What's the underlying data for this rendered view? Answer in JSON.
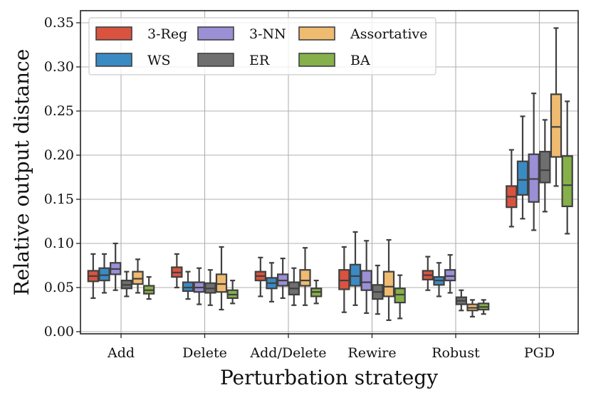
{
  "chart_data": {
    "type": "box",
    "title": "",
    "xlabel": "Perturbation strategy",
    "ylabel": "Relative output distance",
    "ylim": [
      0.0,
      0.36
    ],
    "yticks": [
      "0.00",
      "0.05",
      "0.10",
      "0.15",
      "0.20",
      "0.25",
      "0.30",
      "0.35"
    ],
    "ytick_values": [
      0.0,
      0.05,
      0.1,
      0.15,
      0.2,
      0.25,
      0.3,
      0.35
    ],
    "grid": true,
    "legend_position": "top-left",
    "categories": [
      "Add",
      "Delete",
      "Add/Delete",
      "Rewire",
      "Robust",
      "PGD"
    ],
    "series": [
      {
        "name": "3-Reg",
        "color": "#d9533f",
        "boxes": [
          {
            "whislo": 0.038,
            "q1": 0.057,
            "med": 0.063,
            "q3": 0.069,
            "whishi": 0.088
          },
          {
            "whislo": 0.05,
            "q1": 0.062,
            "med": 0.067,
            "q3": 0.073,
            "whishi": 0.088
          },
          {
            "whislo": 0.04,
            "q1": 0.058,
            "med": 0.063,
            "q3": 0.068,
            "whishi": 0.084
          },
          {
            "whislo": 0.022,
            "q1": 0.048,
            "med": 0.058,
            "q3": 0.07,
            "whishi": 0.096
          },
          {
            "whislo": 0.047,
            "q1": 0.059,
            "med": 0.064,
            "q3": 0.069,
            "whishi": 0.085
          },
          {
            "whislo": 0.119,
            "q1": 0.141,
            "med": 0.153,
            "q3": 0.165,
            "whishi": 0.206
          }
        ]
      },
      {
        "name": "WS",
        "color": "#3a8ac4",
        "boxes": [
          {
            "whislo": 0.044,
            "q1": 0.058,
            "med": 0.064,
            "q3": 0.072,
            "whishi": 0.088
          },
          {
            "whislo": 0.037,
            "q1": 0.046,
            "med": 0.05,
            "q3": 0.056,
            "whishi": 0.068
          },
          {
            "whislo": 0.034,
            "q1": 0.049,
            "med": 0.055,
            "q3": 0.061,
            "whishi": 0.078
          },
          {
            "whislo": 0.03,
            "q1": 0.052,
            "med": 0.063,
            "q3": 0.076,
            "whishi": 0.113
          },
          {
            "whislo": 0.04,
            "q1": 0.053,
            "med": 0.058,
            "q3": 0.062,
            "whishi": 0.078
          },
          {
            "whislo": 0.128,
            "q1": 0.155,
            "med": 0.172,
            "q3": 0.193,
            "whishi": 0.244
          }
        ]
      },
      {
        "name": "3-NN",
        "color": "#9b8fd6",
        "boxes": [
          {
            "whislo": 0.047,
            "q1": 0.065,
            "med": 0.071,
            "q3": 0.078,
            "whishi": 0.1
          },
          {
            "whislo": 0.031,
            "q1": 0.045,
            "med": 0.05,
            "q3": 0.056,
            "whishi": 0.072
          },
          {
            "whislo": 0.038,
            "q1": 0.052,
            "med": 0.058,
            "q3": 0.065,
            "whishi": 0.083
          },
          {
            "whislo": 0.021,
            "q1": 0.047,
            "med": 0.056,
            "q3": 0.069,
            "whishi": 0.103
          },
          {
            "whislo": 0.044,
            "q1": 0.058,
            "med": 0.063,
            "q3": 0.07,
            "whishi": 0.087
          },
          {
            "whislo": 0.115,
            "q1": 0.147,
            "med": 0.173,
            "q3": 0.201,
            "whishi": 0.27
          }
        ]
      },
      {
        "name": "ER",
        "color": "#6f6f6f",
        "boxes": [
          {
            "whislo": 0.04,
            "q1": 0.049,
            "med": 0.053,
            "q3": 0.058,
            "whishi": 0.068
          },
          {
            "whislo": 0.03,
            "q1": 0.044,
            "med": 0.049,
            "q3": 0.055,
            "whishi": 0.07
          },
          {
            "whislo": 0.03,
            "q1": 0.042,
            "med": 0.049,
            "q3": 0.056,
            "whishi": 0.072
          },
          {
            "whislo": 0.02,
            "q1": 0.037,
            "med": 0.045,
            "q3": 0.053,
            "whishi": 0.075
          },
          {
            "whislo": 0.024,
            "q1": 0.031,
            "med": 0.035,
            "q3": 0.039,
            "whishi": 0.047
          },
          {
            "whislo": 0.136,
            "q1": 0.169,
            "med": 0.183,
            "q3": 0.204,
            "whishi": 0.24
          }
        ]
      },
      {
        "name": "Assortative",
        "color": "#efbb70",
        "boxes": [
          {
            "whislo": 0.044,
            "q1": 0.054,
            "med": 0.06,
            "q3": 0.068,
            "whishi": 0.082
          },
          {
            "whislo": 0.025,
            "q1": 0.045,
            "med": 0.054,
            "q3": 0.065,
            "whishi": 0.096
          },
          {
            "whislo": 0.03,
            "q1": 0.052,
            "med": 0.058,
            "q3": 0.07,
            "whishi": 0.095
          },
          {
            "whislo": 0.013,
            "q1": 0.04,
            "med": 0.051,
            "q3": 0.068,
            "whishi": 0.104
          },
          {
            "whislo": 0.017,
            "q1": 0.024,
            "med": 0.027,
            "q3": 0.031,
            "whishi": 0.036
          },
          {
            "whislo": 0.165,
            "q1": 0.198,
            "med": 0.232,
            "q3": 0.269,
            "whishi": 0.344
          }
        ]
      },
      {
        "name": "BA",
        "color": "#86b04a",
        "boxes": [
          {
            "whislo": 0.037,
            "q1": 0.043,
            "med": 0.047,
            "q3": 0.052,
            "whishi": 0.062
          },
          {
            "whislo": 0.032,
            "q1": 0.038,
            "med": 0.042,
            "q3": 0.047,
            "whishi": 0.058
          },
          {
            "whislo": 0.032,
            "q1": 0.04,
            "med": 0.045,
            "q3": 0.049,
            "whishi": 0.058
          },
          {
            "whislo": 0.015,
            "q1": 0.033,
            "med": 0.042,
            "q3": 0.049,
            "whishi": 0.064
          },
          {
            "whislo": 0.02,
            "q1": 0.025,
            "med": 0.028,
            "q3": 0.032,
            "whishi": 0.036
          },
          {
            "whislo": 0.111,
            "q1": 0.142,
            "med": 0.166,
            "q3": 0.199,
            "whishi": 0.261
          }
        ]
      }
    ]
  }
}
